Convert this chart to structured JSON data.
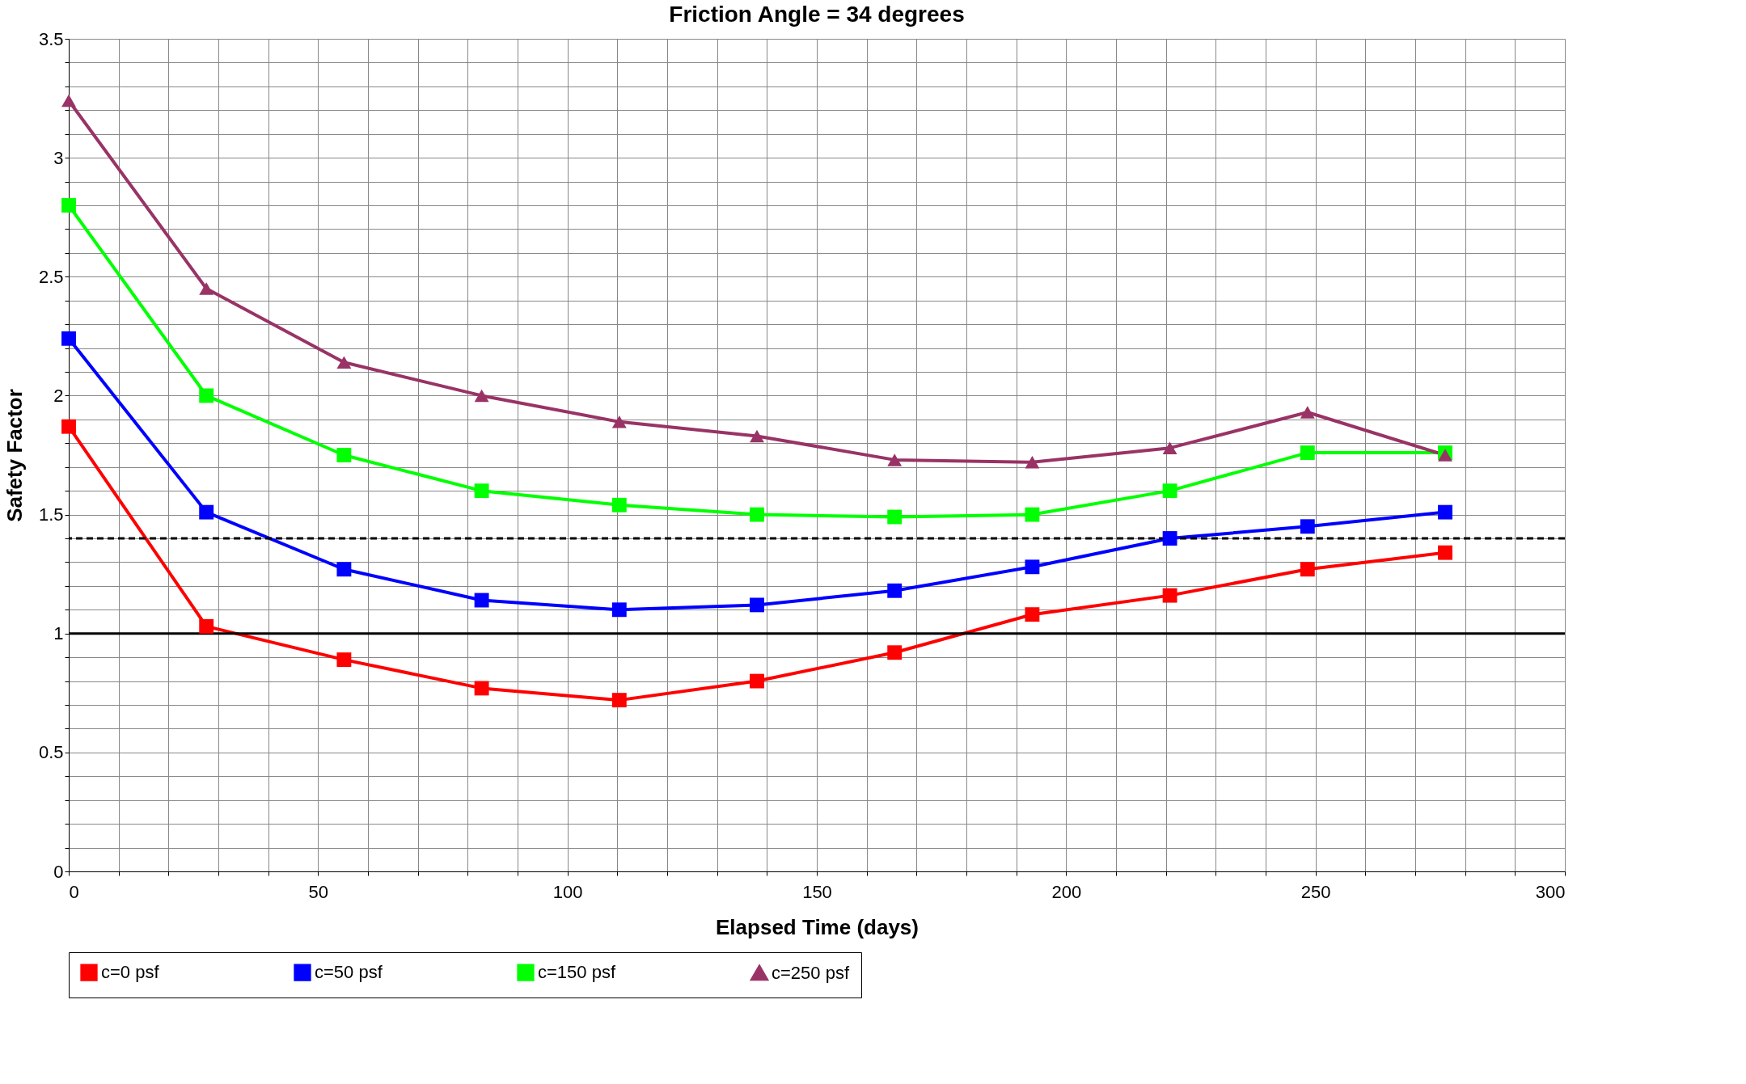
{
  "chart_data": {
    "type": "line",
    "title": "Friction Angle = 34 degrees",
    "xlabel": "Elapsed Time (days)",
    "ylabel": "Safety Factor",
    "x": [
      0,
      27.6,
      55.2,
      82.8,
      110.4,
      138,
      165.6,
      193.2,
      220.8,
      248.4,
      276
    ],
    "series": [
      {
        "name": "c=0 psf",
        "color": "#ff0000",
        "marker": "square",
        "values": [
          1.87,
          1.03,
          0.89,
          0.77,
          0.72,
          0.8,
          0.92,
          1.08,
          1.16,
          1.27,
          1.34
        ]
      },
      {
        "name": "c=50 psf",
        "color": "#0000ff",
        "marker": "square",
        "values": [
          2.24,
          1.51,
          1.27,
          1.14,
          1.1,
          1.12,
          1.18,
          1.28,
          1.4,
          1.45,
          1.51
        ]
      },
      {
        "name": "c=150 psf",
        "color": "#00ff00",
        "marker": "square",
        "values": [
          2.8,
          2.0,
          1.75,
          1.6,
          1.54,
          1.5,
          1.49,
          1.5,
          1.6,
          1.76,
          1.76
        ]
      },
      {
        "name": "c=250 psf",
        "color": "#993366",
        "marker": "triangle",
        "values": [
          3.24,
          2.45,
          2.14,
          2.0,
          1.89,
          1.83,
          1.73,
          1.72,
          1.78,
          1.93,
          1.75
        ]
      }
    ],
    "xlim": [
      0,
      300
    ],
    "xticks": [
      0,
      {
        "value": 10,
        "label": null
      },
      {
        "value": 20,
        "label": null
      },
      {
        "value": 30,
        "label": null
      },
      {
        "value": 40,
        "label": null
      },
      50,
      {
        "value": 60,
        "label": null
      },
      {
        "value": 70,
        "label": null
      },
      {
        "value": 80,
        "label": null
      },
      {
        "value": 90,
        "label": null
      },
      100,
      {
        "value": 110,
        "label": null
      },
      {
        "value": 120,
        "label": null
      },
      {
        "value": 130,
        "label": null
      },
      {
        "value": 140,
        "label": null
      },
      150,
      {
        "value": 160,
        "label": null
      },
      {
        "value": 170,
        "label": null
      },
      {
        "value": 180,
        "label": null
      },
      {
        "value": 190,
        "label": null
      },
      200,
      {
        "value": 210,
        "label": null
      },
      {
        "value": 220,
        "label": null
      },
      {
        "value": 230,
        "label": null
      },
      {
        "value": 240,
        "label": null
      },
      250,
      {
        "value": 260,
        "label": null
      },
      {
        "value": 270,
        "label": null
      },
      {
        "value": 280,
        "label": null
      },
      {
        "value": 290,
        "label": null
      },
      300
    ],
    "ylim": [
      0,
      3.5
    ],
    "yticks": [
      0,
      {
        "value": 0.1,
        "label": null
      },
      {
        "value": 0.2,
        "label": null
      },
      {
        "value": 0.3,
        "label": null
      },
      {
        "value": 0.4,
        "label": null
      },
      0.5,
      {
        "value": 0.6,
        "label": null
      },
      {
        "value": 0.7,
        "label": null
      },
      {
        "value": 0.8,
        "label": null
      },
      {
        "value": 0.9,
        "label": null
      },
      1,
      {
        "value": 1.1,
        "label": null
      },
      {
        "value": 1.2,
        "label": null
      },
      {
        "value": 1.3,
        "label": null
      },
      {
        "value": 1.4,
        "label": null
      },
      1.5,
      {
        "value": 1.6,
        "label": null
      },
      {
        "value": 1.7,
        "label": null
      },
      {
        "value": 1.8,
        "label": null
      },
      {
        "value": 1.9,
        "label": null
      },
      2,
      {
        "value": 2.1,
        "label": null
      },
      {
        "value": 2.2,
        "label": null
      },
      {
        "value": 2.3,
        "label": null
      },
      {
        "value": 2.4,
        "label": null
      },
      2.5,
      {
        "value": 2.6,
        "label": null
      },
      {
        "value": 2.7,
        "label": null
      },
      {
        "value": 2.8,
        "label": null
      },
      {
        "value": 2.9,
        "label": null
      },
      3,
      {
        "value": 3.1,
        "label": null
      },
      {
        "value": 3.2,
        "label": null
      },
      {
        "value": 3.3,
        "label": null
      },
      {
        "value": 3.4,
        "label": null
      },
      3.5
    ],
    "ref_lines": [
      {
        "axis": "y",
        "value": 1,
        "color": "#000000",
        "line_style": "solid"
      },
      {
        "axis": "y",
        "value": 1.4,
        "color": "#000000",
        "line_style": "dashed"
      }
    ],
    "grid": true,
    "legend": "bottom",
    "line_style": "solid"
  }
}
